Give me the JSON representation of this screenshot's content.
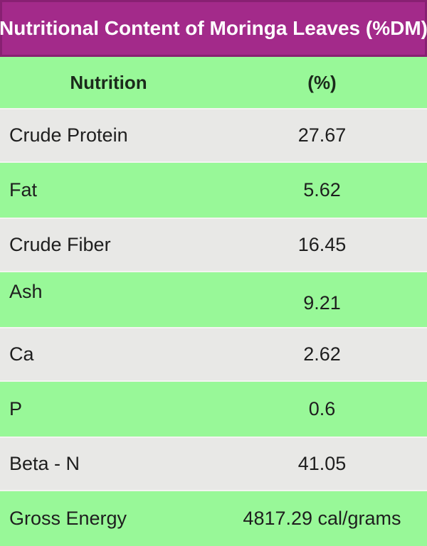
{
  "header": {
    "title": "Nutritional Content of Moringa Leaves (%DM)"
  },
  "chart_data": {
    "type": "table",
    "title": "Nutritional Content of Moringa Leaves (%DM)",
    "columns": {
      "nutrition": "Nutrition",
      "percent": "(%)"
    },
    "rows": [
      {
        "label": "Crude Protein",
        "value": "27.67"
      },
      {
        "label": "Fat",
        "value": "5.62"
      },
      {
        "label": "Crude Fiber",
        "value": "16.45"
      },
      {
        "label": "Ash",
        "value": "9.21"
      },
      {
        "label": "Ca",
        "value": "2.62"
      },
      {
        "label": "P",
        "value": "0.6"
      },
      {
        "label": "Beta - N",
        "value": "41.05"
      },
      {
        "label": "Gross Energy",
        "value": "4817.29 cal/grams"
      }
    ]
  },
  "colors": {
    "header_bg": "#A32A8A",
    "header_text": "#FFFFFF",
    "row_green": "#98F898",
    "row_gray": "#E8E8E6",
    "text": "#1E1E1E"
  }
}
